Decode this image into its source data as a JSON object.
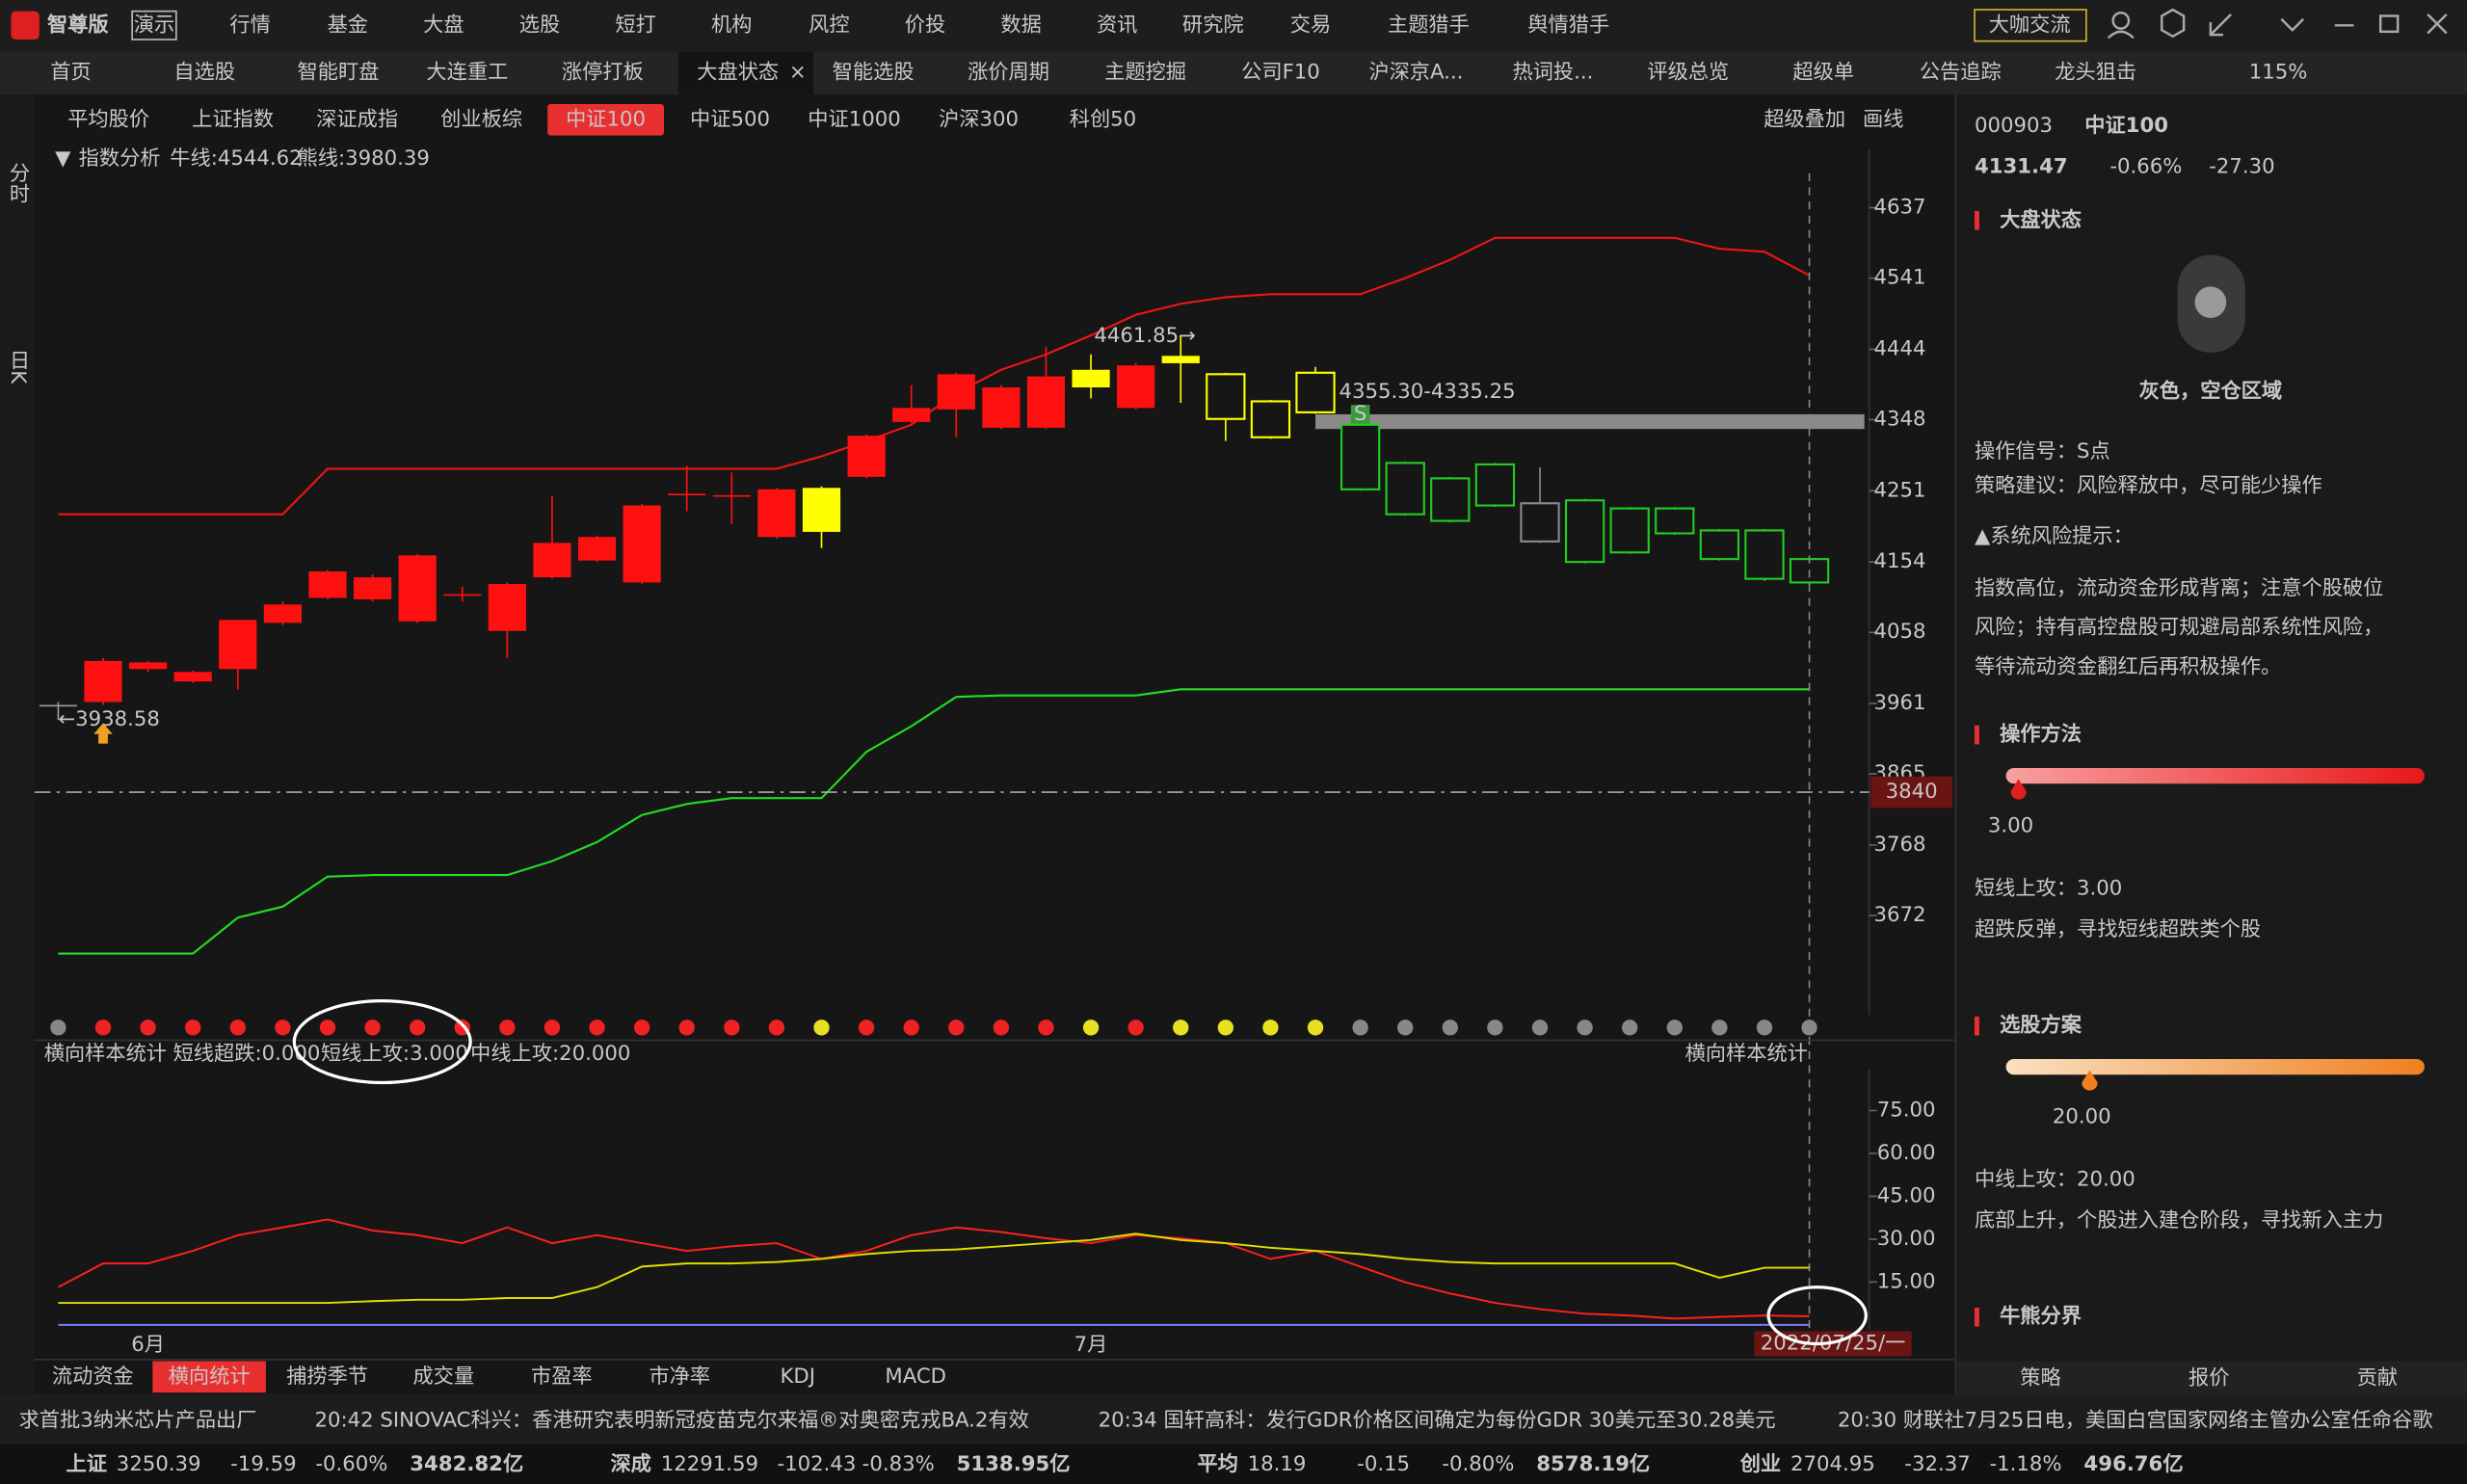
{
  "menu": {
    "logo": "智尊版",
    "badge": "演示",
    "items": [
      "行情",
      "基金",
      "大盘",
      "选股",
      "短打",
      "机构",
      "风控",
      "价投",
      "数据",
      "资讯",
      "研究院",
      "交易",
      "主题猎手",
      "舆情猎手"
    ],
    "exchange": "大咖交流"
  },
  "tabs": {
    "items": [
      "首页",
      "自选股",
      "智能盯盘",
      "大连重工",
      "涨停打板",
      "大盘状态",
      "智能选股",
      "涨价周期",
      "主题挖掘",
      "公司F10",
      "沪深京A...",
      "热词投...",
      "评级总览",
      "超级单",
      "公告追踪",
      "龙头狙击"
    ],
    "active": 5,
    "zoom": "115%"
  },
  "index_tabs": {
    "items": [
      "平均股价",
      "上证指数",
      "深证成指",
      "创业板综",
      "中证100",
      "中证500",
      "中证1000",
      "沪深300",
      "科创50"
    ],
    "active": 4,
    "tools": [
      "超级叠加",
      "画线"
    ]
  },
  "side_tabs": [
    "分时",
    "日K"
  ],
  "chart_data": [
    {
      "type": "candlestick",
      "title": "指数分析",
      "ylim": [
        3547,
        4684
      ],
      "yticks": [
        4637,
        4541,
        4444,
        4348,
        4251,
        4154,
        4058,
        3961,
        3865,
        3768,
        3672
      ],
      "open": [
        3959,
        3963,
        4008,
        3991,
        4008,
        4071,
        4105,
        4103,
        4073,
        4109,
        4060,
        4133,
        4156,
        4126,
        4246,
        4244,
        4188,
        4195,
        4270,
        4345,
        4362,
        4337,
        4337,
        4392,
        4364,
        4425,
        4410,
        4373,
        4412,
        4341,
        4289,
        4268,
        4287,
        4234,
        4238,
        4227,
        4227,
        4197,
        4197,
        4158
      ],
      "high": [
        3963,
        4023,
        4019,
        4006,
        4075,
        4100,
        4143,
        4137,
        4165,
        4120,
        4126,
        4244,
        4190,
        4233,
        4285,
        4276,
        4255,
        4257,
        4328,
        4395,
        4412,
        4395,
        4448,
        4437,
        4425,
        4461.85,
        4412,
        4375,
        4420,
        4345,
        4291,
        4270,
        4289,
        4283,
        4240,
        4229,
        4229,
        4199,
        4199,
        4160
      ],
      "low": [
        3938.58,
        3959,
        4004,
        3989,
        3980,
        4068,
        4103,
        4100,
        4071,
        4100,
        4023,
        4131,
        4154,
        4124,
        4223,
        4206,
        4186,
        4173,
        4268,
        4343,
        4324,
        4335,
        4335,
        4377,
        4362,
        4371,
        4319,
        4322,
        4356,
        4251,
        4217,
        4208,
        4229,
        4180,
        4152,
        4165,
        4191,
        4156,
        4128,
        4122
      ],
      "close": [
        3959,
        4019,
        4017,
        4004,
        4075,
        4096,
        4141,
        4133,
        4163,
        4110,
        4124,
        4180,
        4188,
        4231,
        4247,
        4245,
        4253,
        4255,
        4326,
        4364,
        4410,
        4392,
        4407,
        4416,
        4422,
        4435,
        4349,
        4324,
        4358,
        4253,
        4219,
        4210,
        4231,
        4182,
        4154,
        4167,
        4193,
        4158,
        4131,
        4126
      ],
      "colors": [
        "#9a9a9a",
        "#ff1010",
        "#ff1010",
        "#ff1010",
        "#ff1010",
        "#ff1010",
        "#ff1010",
        "#ff1010",
        "#ff1010",
        "#ff1010",
        "#ff1010",
        "#ff1010",
        "#ff1010",
        "#ff1010",
        "#ff1010",
        "#ff1010",
        "#ff1010",
        "#ffff00",
        "#ff1010",
        "#ff1010",
        "#ff1010",
        "#ff1010",
        "#ff1010",
        "#ffff00",
        "#ff1010",
        "#ffff00",
        "#ffff00",
        "#ffff00",
        "#ffff00",
        "#22cc22",
        "#22cc22",
        "#22cc22",
        "#22cc22",
        "#8a8a8a",
        "#22cc22",
        "#22cc22",
        "#22cc22",
        "#22cc22",
        "#22cc22",
        "#22cc22"
      ],
      "series": [
        {
          "name": "牛线:4544.62",
          "color": "#ee1515",
          "values": [
            4219,
            4219,
            4219,
            4219,
            4219,
            4219,
            4281,
            4281,
            4281,
            4281,
            4281,
            4281,
            4281,
            4281,
            4281,
            4281,
            4281,
            4298,
            4319,
            4341,
            4384,
            4416,
            4437,
            4463,
            4491,
            4506,
            4515,
            4519,
            4519,
            4519,
            4541,
            4566,
            4596,
            4596,
            4596,
            4596,
            4596,
            4581,
            4577,
            4544.62
          ]
        },
        {
          "name": "熊线:3980.39",
          "color": "#22dd22",
          "values": [
            3620,
            3620,
            3620,
            3620,
            3669,
            3684,
            3725,
            3727,
            3727,
            3727,
            3727,
            3746,
            3772,
            3809,
            3824,
            3832,
            3832,
            3832,
            3895,
            3930,
            3970,
            3972,
            3972,
            3972,
            3972,
            3980.39,
            3980.39,
            3980.39,
            3980.39,
            3980.39,
            3980.39,
            3980.39,
            3980.39,
            3980.39,
            3980.39,
            3980.39,
            3980.39,
            3980.39,
            3980.39,
            3980.39
          ]
        }
      ],
      "high_label": "4461.85→",
      "low_label": "←3938.58",
      "band": [
        4335.25,
        4355.3
      ],
      "band_label": "4355.30-4335.25",
      "signal": "S",
      "cursor": 3840,
      "signal_colors": [
        "#888888",
        "#ee2222",
        "#ee2222",
        "#ee2222",
        "#ee2222",
        "#ee2222",
        "#ee2222",
        "#ee2222",
        "#ee2222",
        "#ee2222",
        "#ee2222",
        "#ee2222",
        "#ee2222",
        "#ee2222",
        "#ee2222",
        "#ee2222",
        "#ee2222",
        "#e8e020",
        "#ee2222",
        "#ee2222",
        "#ee2222",
        "#ee2222",
        "#ee2222",
        "#e8e020",
        "#ee2222",
        "#e8e020",
        "#e8e020",
        "#e8e020",
        "#e8e020",
        "#888888",
        "#888888",
        "#888888",
        "#888888",
        "#888888",
        "#888888",
        "#888888",
        "#888888",
        "#888888",
        "#888888",
        "#888888"
      ]
    },
    {
      "type": "line",
      "title": "横向样本统计",
      "categories": [
        null,
        null,
        "6月",
        null,
        null,
        null,
        null,
        null,
        null,
        null,
        null,
        null,
        null,
        null,
        null,
        null,
        null,
        null,
        null,
        null,
        null,
        null,
        null,
        "7月",
        null,
        null,
        null,
        null,
        null,
        null,
        null,
        null,
        null,
        null,
        null,
        null,
        null,
        null,
        null,
        null
      ],
      "ylim": [
        0,
        90
      ],
      "yticks": [
        {
          "value": 75,
          "label": "75.00"
        },
        {
          "value": 60,
          "label": "60.00"
        },
        {
          "value": 45,
          "label": "45.00"
        },
        {
          "value": 30,
          "label": "30.00"
        },
        {
          "value": 15,
          "label": "15.00"
        }
      ],
      "series": [
        {
          "name": "短线超跌:0.000",
          "color": "#7a7aff",
          "values": [
            0,
            0,
            0,
            0,
            0,
            0,
            0,
            0,
            0,
            0,
            0,
            0,
            0,
            0,
            0,
            0,
            0,
            0,
            0,
            0,
            0,
            0,
            0,
            0,
            0,
            0,
            0,
            0,
            0,
            0,
            0,
            0,
            0,
            0,
            0,
            0,
            0,
            0,
            0,
            0
          ]
        },
        {
          "name": "短线上攻:3.000",
          "color": "#ff2020",
          "values": [
            13.2,
            21.5,
            21.5,
            25.9,
            31.4,
            34.1,
            36.9,
            33.0,
            31.4,
            28.6,
            34.1,
            28.6,
            31.4,
            28.6,
            25.9,
            27.5,
            28.6,
            23.1,
            25.9,
            31.4,
            34.1,
            32.5,
            30.3,
            28.6,
            31.4,
            30.3,
            28.6,
            23.1,
            25.9,
            20.4,
            14.9,
            11.0,
            7.7,
            5.5,
            3.9,
            3.3,
            2.2,
            2.8,
            3.3,
            3
          ]
        },
        {
          "name": "中线上攻:20.000",
          "color": "#e0e000",
          "values": [
            7.7,
            7.7,
            7.7,
            7.7,
            7.7,
            7.7,
            7.7,
            8.3,
            8.8,
            8.8,
            9.4,
            9.4,
            13.2,
            20.4,
            21.5,
            21.5,
            22.0,
            23.1,
            24.8,
            25.9,
            26.4,
            27.5,
            28.6,
            29.7,
            31.9,
            29.7,
            28.6,
            27.0,
            25.9,
            24.8,
            23.1,
            22.0,
            21.5,
            21.5,
            21.5,
            21.5,
            21.5,
            16.5,
            20.0,
            20
          ]
        }
      ],
      "date_label": "2022/07/25/一"
    }
  ],
  "bottom_tabs": {
    "items": [
      "流动资金",
      "横向统计",
      "捕捞季节",
      "成交量",
      "市盈率",
      "市净率",
      "KDJ",
      "MACD"
    ],
    "active": 1
  },
  "panel": {
    "code": "000903",
    "name": "中证100",
    "price": "4131.47",
    "pct": "-0.66%",
    "change": "-27.30",
    "status_title": "大盘状态",
    "status": "灰色，空仓区域",
    "signal": "操作信号：S点",
    "advice": "策略建议：风险释放中，尽可能少操作",
    "risk_title": "▲系统风险提示：",
    "risk_lines": [
      "指数高位，流动资金形成背离；注意个股破位",
      "风险；持有高控盘股可规避局部系统性风险，",
      "等待流动资金翻红后再积极操作。"
    ],
    "method": {
      "title": "操作方法",
      "xlim": [
        0,
        100
      ],
      "value": {
        "value": 3,
        "label": "3.00"
      },
      "label": "短线上攻：3.00",
      "desc": "超跌反弹，寻找短线超跌类个股"
    },
    "selection": {
      "title": "选股方案",
      "xlim": [
        0,
        100
      ],
      "value": {
        "value": 20,
        "label": "20.00"
      },
      "label": "中线上攻：20.00",
      "desc": "底部上升，个股进入建仓阶段，寻找新入主力"
    },
    "bullbear": "牛熊分界",
    "tabs": [
      "策略",
      "报价",
      "贡献"
    ],
    "active_tab": 0
  },
  "ticker": [
    "求首批3纳米芯片产品出厂",
    "20:42 SINOVAC科兴：香港研究表明新冠疫苗克尔来福®对奥密克戎BA.2有效",
    "20:34 国轩高科：发行GDR价格区间确定为每份GDR 30美元至30.28美元",
    "20:30 财联社7月25日电，美国白宫国家网络主管办公室任命谷歌"
  ],
  "status": [
    {
      "name": "上证",
      "price": "3250.39",
      "change": "-19.59",
      "pct": "-0.60%",
      "amount": "3482.82亿"
    },
    {
      "name": "深成",
      "price": "12291.59",
      "change": "-102.43",
      "pct": "-0.83%",
      "amount": "5138.95亿"
    },
    {
      "name": "平均",
      "price": "18.19",
      "change": "-0.15",
      "pct": "-0.80%",
      "amount": "8578.19亿"
    },
    {
      "name": "创业",
      "price": "2704.95",
      "change": "-32.37",
      "pct": "-1.18%",
      "amount": "496.76亿"
    }
  ]
}
